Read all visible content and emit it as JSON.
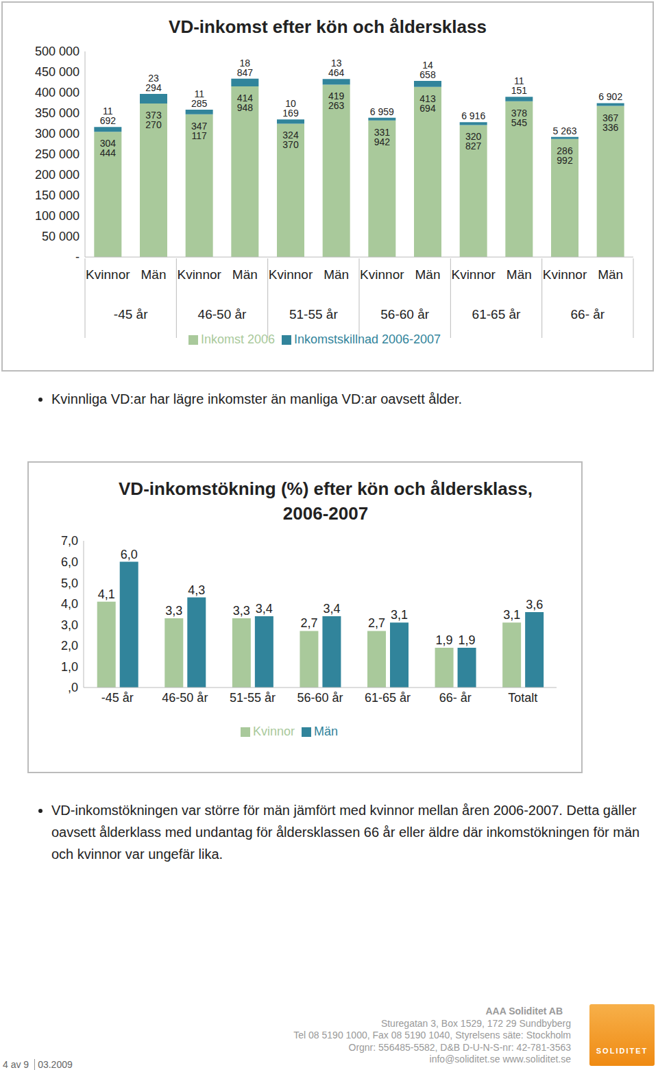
{
  "chart_data": [
    {
      "type": "bar",
      "stacked": true,
      "title": "VD-inkomst efter kön och åldersklass",
      "categories": [
        "Kvinnor",
        "Män",
        "Kvinnor",
        "Män",
        "Kvinnor",
        "Män",
        "Kvinnor",
        "Män",
        "Kvinnor",
        "Män",
        "Kvinnor",
        "Män"
      ],
      "groups": [
        "-45 år",
        "46-50 år",
        "51-55 år",
        "56-60 år",
        "61-65 år",
        "66- år"
      ],
      "series": [
        {
          "name": "Inkomst 2006",
          "color": "#a9c99b",
          "values": [
            304444,
            373270,
            347117,
            414948,
            324370,
            419263,
            331942,
            413694,
            320827,
            378545,
            286992,
            367336
          ],
          "value_labels": [
            "304 444",
            "373 270",
            "347 117",
            "414 948",
            "324 370",
            "419 263",
            "331 942",
            "413 694",
            "320 827",
            "378 545",
            "286 992",
            "367 336"
          ]
        },
        {
          "name": "Inkomstskillnad 2006-2007",
          "color": "#31849b",
          "values": [
            11692,
            23294,
            11285,
            18847,
            10169,
            13464,
            6959,
            14658,
            6916,
            11151,
            5263,
            6902
          ],
          "value_labels": [
            "11 692",
            "23 294",
            "11 285",
            "18 847",
            "10 169",
            "13 464",
            "6 959",
            "14 658",
            "6 916",
            "11 151",
            "5 263",
            "6 902"
          ]
        }
      ],
      "ylim": [
        0,
        500000
      ],
      "yticks": [
        {
          "value": 0,
          "label": "-"
        },
        {
          "value": 50000,
          "label": "50 000"
        },
        {
          "value": 100000,
          "label": "100 000"
        },
        {
          "value": 150000,
          "label": "150 000"
        },
        {
          "value": 200000,
          "label": "200 000"
        },
        {
          "value": 250000,
          "label": "250 000"
        },
        {
          "value": 300000,
          "label": "300 000"
        },
        {
          "value": 350000,
          "label": "350 000"
        },
        {
          "value": 400000,
          "label": "400 000"
        },
        {
          "value": 450000,
          "label": "450 000"
        },
        {
          "value": 500000,
          "label": "500 000"
        }
      ],
      "grid": false,
      "data_labels": true,
      "legend": "bottom"
    },
    {
      "type": "bar",
      "title": "VD-inkomstökning (%) efter kön och åldersklass, 2006-2007",
      "categories": [
        "-45 år",
        "46-50 år",
        "51-55 år",
        "56-60 år",
        "61-65 år",
        "66- år",
        "Totalt"
      ],
      "series": [
        {
          "name": "Kvinnor",
          "color": "#a9c99b",
          "values": [
            4.1,
            3.3,
            3.3,
            2.7,
            2.7,
            1.9,
            3.1
          ],
          "value_labels": [
            "4,1",
            "3,3",
            "3,3",
            "2,7",
            "2,7",
            "1,9",
            "3,1"
          ]
        },
        {
          "name": "Män",
          "color": "#31849b",
          "values": [
            6.0,
            4.3,
            3.4,
            3.4,
            3.1,
            1.9,
            3.6
          ],
          "value_labels": [
            "6,0",
            "4,3",
            "3,4",
            "3,4",
            "3,1",
            "1,9",
            "3,6"
          ]
        }
      ],
      "ylim": [
        0,
        7
      ],
      "yticks": [
        {
          "value": 0,
          "label": ",0"
        },
        {
          "value": 1,
          "label": "1,0"
        },
        {
          "value": 2,
          "label": "2,0"
        },
        {
          "value": 3,
          "label": "3,0"
        },
        {
          "value": 4,
          "label": "4,0"
        },
        {
          "value": 5,
          "label": "5,0"
        },
        {
          "value": 6,
          "label": "6,0"
        },
        {
          "value": 7,
          "label": "7,0"
        }
      ],
      "grid": false,
      "data_labels": true,
      "legend": "bottom"
    }
  ],
  "bullets": [
    "Kvinnliga VD:ar har lägre inkomster än manliga VD:ar oavsett ålder.",
    "VD-inkomstökningen var större för män jämfört med kvinnor mellan åren 2006-2007. Detta gäller oavsett ålderklass med undantag för åldersklassen 66 år eller äldre där inkomstökningen för män och kvinnor var ungefär lika."
  ],
  "footer": {
    "company": "AAA Soliditet AB",
    "lines": [
      "Sturegatan 3, Box 1529, 172 29 Sundbyberg",
      "Tel 08 5190 1000, Fax 08 5190 1040, Styrelsens säte: Stockholm",
      "Orgnr: 556485-5582, D&B D-U-N-S-nr: 42-781-3563",
      "info@soliditet.se www.soliditet.se"
    ],
    "page": "4 av 9",
    "date": "03.2009",
    "logo": "SOLIDITET"
  }
}
